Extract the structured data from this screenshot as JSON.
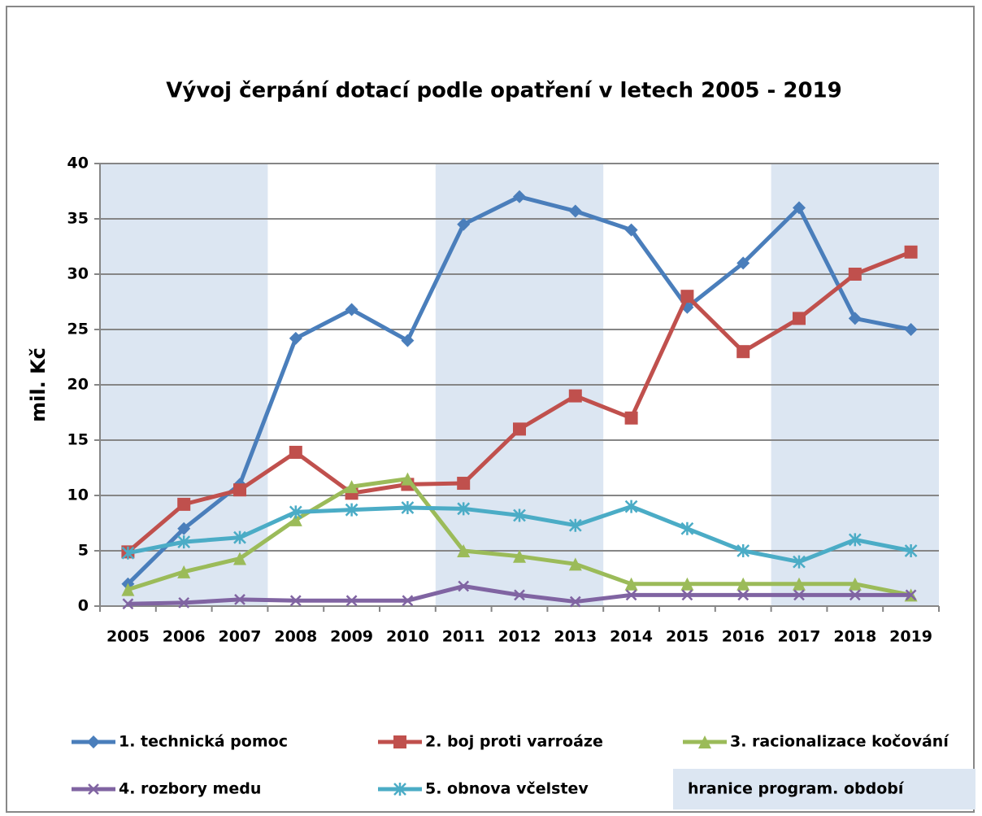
{
  "chart_data": {
    "type": "line",
    "title": "Vývoj čerpání dotací podle opatření v letech 2005 - 2019",
    "y_label": "mil. Kč",
    "categories": [
      "2005",
      "2006",
      "2007",
      "2008",
      "2009",
      "2010",
      "2011",
      "2012",
      "2013",
      "2014",
      "2015",
      "2016",
      "2017",
      "2018",
      "2019"
    ],
    "series": [
      {
        "name": "1. technická pomoc",
        "color": "#4a7ebb",
        "marker": "diamond",
        "values": [
          2,
          7,
          11,
          24.2,
          26.8,
          24,
          34.5,
          37,
          35.7,
          34,
          27,
          31,
          36,
          26,
          25
        ]
      },
      {
        "name": "2. boj proti varroáze",
        "color": "#c0504d",
        "marker": "square",
        "values": [
          4.9,
          9.2,
          10.5,
          13.9,
          10.2,
          11,
          11.1,
          16,
          19,
          17,
          28,
          23,
          26,
          30,
          32
        ]
      },
      {
        "name": "3. racionalizace kočování",
        "color": "#9bbb59",
        "marker": "triangle",
        "values": [
          1.5,
          3.1,
          4.3,
          7.8,
          10.8,
          11.5,
          5,
          4.5,
          3.8,
          2,
          2,
          2,
          2,
          2,
          1
        ]
      },
      {
        "name": "4. rozbory medu",
        "color": "#8064a2",
        "marker": "x",
        "values": [
          0.2,
          0.3,
          0.6,
          0.5,
          0.5,
          0.5,
          1.8,
          1,
          0.4,
          1,
          1,
          1,
          1,
          1,
          1
        ]
      },
      {
        "name": "5. obnova včelstev",
        "color": "#4bacc6",
        "marker": "star",
        "values": [
          4.8,
          5.8,
          6.2,
          8.5,
          8.7,
          8.9,
          8.8,
          8.2,
          7.3,
          9,
          7,
          5,
          4,
          6,
          5
        ]
      }
    ],
    "periods": {
      "name": "hranice program. období",
      "color": "#dce6f2",
      "ranges": [
        [
          "2005",
          "2007"
        ],
        [
          "2011",
          "2013"
        ],
        [
          "2017",
          "2019"
        ]
      ]
    },
    "ylim": [
      0,
      40
    ],
    "yticks": [
      0,
      5,
      10,
      15,
      20,
      25,
      30,
      35,
      40
    ],
    "grid": true
  }
}
